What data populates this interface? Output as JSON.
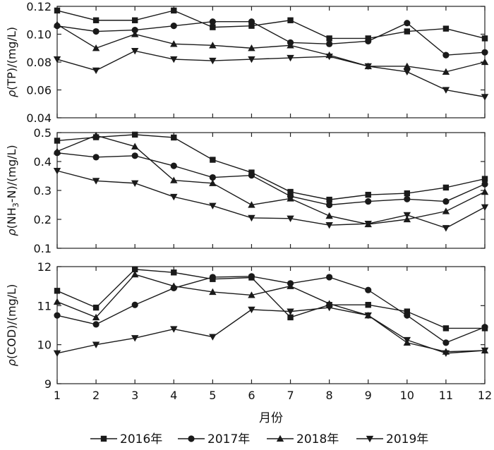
{
  "chart_data": [
    {
      "type": "line",
      "ylabel_parts": [
        "ρ",
        "(TP)/(mg/L)"
      ],
      "ylim": [
        0.04,
        0.12
      ],
      "yticks": [
        "0.04",
        "0.06",
        "0.08",
        "0.10",
        "0.12"
      ],
      "ytick_values": [
        0.04,
        0.06,
        0.08,
        0.1,
        0.12
      ],
      "x": [
        1,
        2,
        3,
        4,
        5,
        6,
        7,
        8,
        9,
        10,
        11,
        12
      ],
      "series": [
        {
          "name": "2016年",
          "values": [
            0.117,
            0.11,
            0.11,
            0.117,
            0.105,
            0.106,
            0.11,
            0.097,
            0.097,
            0.102,
            0.104,
            0.097
          ]
        },
        {
          "name": "2017年",
          "values": [
            0.106,
            0.102,
            0.103,
            0.106,
            0.109,
            0.109,
            0.094,
            0.093,
            0.095,
            0.108,
            0.085,
            0.087
          ]
        },
        {
          "name": "2018年",
          "values": [
            0.107,
            0.09,
            0.1,
            0.093,
            0.092,
            0.09,
            0.092,
            0.085,
            0.077,
            0.077,
            0.073,
            0.08
          ]
        },
        {
          "name": "2019年",
          "values": [
            0.082,
            0.074,
            0.088,
            0.082,
            0.081,
            0.082,
            0.083,
            0.084,
            0.077,
            0.073,
            0.06,
            0.055
          ]
        }
      ]
    },
    {
      "type": "line",
      "ylabel_parts": [
        "ρ",
        "(NH",
        "3",
        "-N)/(mg/L)"
      ],
      "ylim": [
        0.1,
        0.5
      ],
      "yticks": [
        "0.1",
        "0.2",
        "0.3",
        "0.4",
        "0.5"
      ],
      "ytick_values": [
        0.1,
        0.2,
        0.3,
        0.4,
        0.5
      ],
      "x": [
        1,
        2,
        3,
        4,
        5,
        6,
        7,
        8,
        9,
        10,
        11,
        12
      ],
      "series": [
        {
          "name": "2016年",
          "values": [
            0.472,
            0.484,
            0.493,
            0.483,
            0.406,
            0.362,
            0.295,
            0.268,
            0.285,
            0.29,
            0.31,
            0.34
          ]
        },
        {
          "name": "2017年",
          "values": [
            0.43,
            0.415,
            0.42,
            0.385,
            0.345,
            0.352,
            0.28,
            0.25,
            0.262,
            0.27,
            0.262,
            0.322
          ]
        },
        {
          "name": "2018年",
          "values": [
            0.435,
            0.49,
            0.452,
            0.335,
            0.325,
            0.25,
            0.272,
            0.212,
            0.183,
            0.2,
            0.228,
            0.295
          ]
        },
        {
          "name": "2019年",
          "values": [
            0.368,
            0.333,
            0.325,
            0.278,
            0.247,
            0.205,
            0.203,
            0.18,
            0.185,
            0.215,
            0.17,
            0.242
          ]
        }
      ]
    },
    {
      "type": "line",
      "ylabel_parts": [
        "ρ",
        "(COD)/(mg/L)"
      ],
      "ylim": [
        9,
        12
      ],
      "yticks": [
        "9",
        "10",
        "11",
        "12"
      ],
      "ytick_values": [
        9,
        10,
        11,
        12
      ],
      "x": [
        1,
        2,
        3,
        4,
        5,
        6,
        7,
        8,
        9,
        10,
        11,
        12
      ],
      "series": [
        {
          "name": "2016年",
          "values": [
            11.38,
            10.95,
            11.93,
            11.85,
            11.68,
            11.72,
            10.7,
            11.02,
            11.02,
            10.85,
            10.42,
            10.42
          ]
        },
        {
          "name": "2017年",
          "values": [
            10.75,
            10.52,
            11.02,
            11.45,
            11.73,
            11.75,
            11.57,
            11.73,
            11.4,
            10.75,
            10.05,
            10.45
          ]
        },
        {
          "name": "2018年",
          "values": [
            11.1,
            10.7,
            11.8,
            11.5,
            11.35,
            11.27,
            11.5,
            11.05,
            10.75,
            10.05,
            9.82,
            9.85
          ]
        },
        {
          "name": "2019年",
          "values": [
            9.78,
            10.0,
            10.17,
            10.4,
            10.2,
            10.9,
            10.85,
            10.95,
            10.75,
            10.12,
            9.78,
            9.85
          ]
        }
      ]
    }
  ],
  "xaxis": {
    "label": "月份",
    "ticks": [
      "1",
      "2",
      "3",
      "4",
      "5",
      "6",
      "7",
      "8",
      "9",
      "10",
      "11",
      "12"
    ]
  },
  "legend": {
    "position": "bottom",
    "items": [
      {
        "name": "2016年",
        "marker": "square"
      },
      {
        "name": "2017年",
        "marker": "circle"
      },
      {
        "name": "2018年",
        "marker": "triangle-up"
      },
      {
        "name": "2019年",
        "marker": "triangle-down"
      }
    ]
  },
  "colors": {
    "line": "#1a1a1a",
    "axis": "#222222"
  }
}
